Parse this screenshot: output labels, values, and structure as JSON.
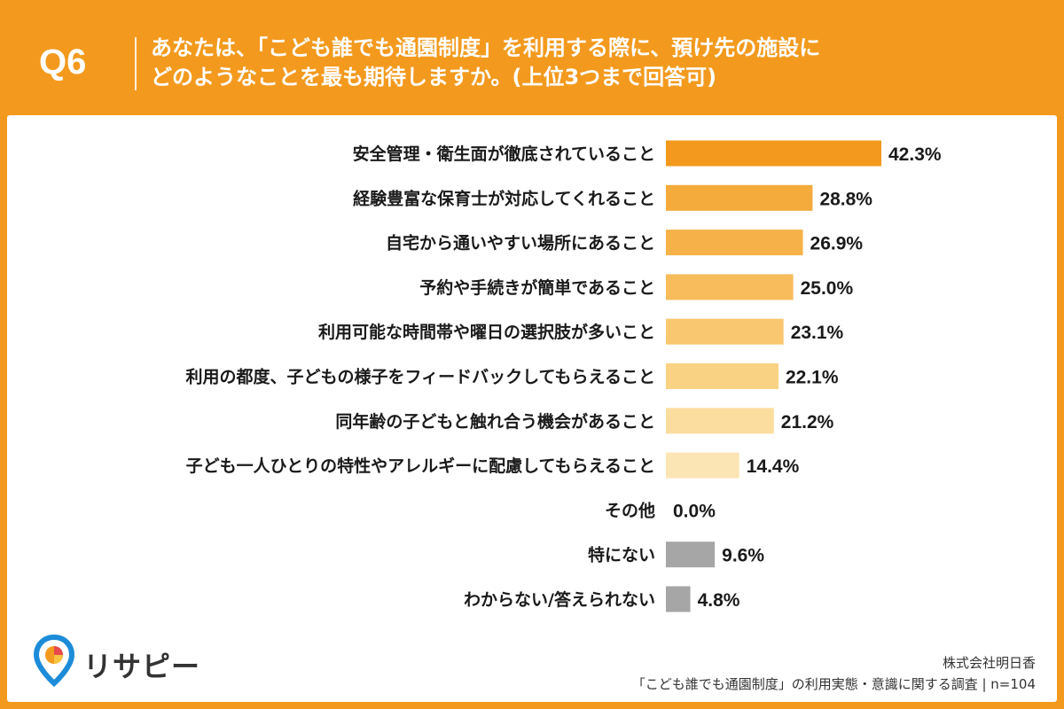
{
  "header": {
    "q_label": "Q6",
    "question_line1": "あなたは、「こども誰でも通園制度」を利用する際に、預け先の施設に",
    "question_line2": "どのようなことを最も期待しますか。(上位3つまで回答可)"
  },
  "chart_data": {
    "type": "bar",
    "orientation": "horizontal",
    "categories": [
      "安全管理・衛生面が徹底されていること",
      "経験豊富な保育士が対応してくれること",
      "自宅から通いやすい場所にあること",
      "予約や手続きが簡単であること",
      "利用可能な時間帯や曜日の選択肢が多いこと",
      "利用の都度、子どもの様子をフィードバックしてもらえること",
      "同年齢の子どもと触れ合う機会があること",
      "子ども一人ひとりの特性やアレルギーに配慮してもらえること",
      "その他",
      "特にない",
      "わからない/答えられない"
    ],
    "values": [
      42.3,
      28.8,
      26.9,
      25.0,
      23.1,
      22.1,
      21.2,
      14.4,
      0.0,
      9.6,
      4.8
    ],
    "value_labels": [
      "42.3%",
      "28.8%",
      "26.9%",
      "25.0%",
      "23.1%",
      "22.1%",
      "21.2%",
      "14.4%",
      "0.0%",
      "9.6%",
      "4.8%"
    ],
    "bar_colors": [
      "#F39A1E",
      "#F5AA3C",
      "#F6B249",
      "#F8BC5C",
      "#F9C76F",
      "#FAD283",
      "#FBDD9F",
      "#FCE5B4",
      "#FCE5B4",
      "#A6A6A6",
      "#A6A6A6"
    ],
    "xlim": [
      0,
      42.3
    ],
    "title": "",
    "xlabel": "",
    "ylabel": "",
    "grid": false
  },
  "brand": {
    "logo_text": "リサピー",
    "logo_icon": "pin-icon",
    "accent_color": "#F39A1E"
  },
  "source": {
    "company": "株式会社明日香",
    "survey": "「こども誰でも通園制度」の利用実態・意識に関する調査 | n=104"
  }
}
